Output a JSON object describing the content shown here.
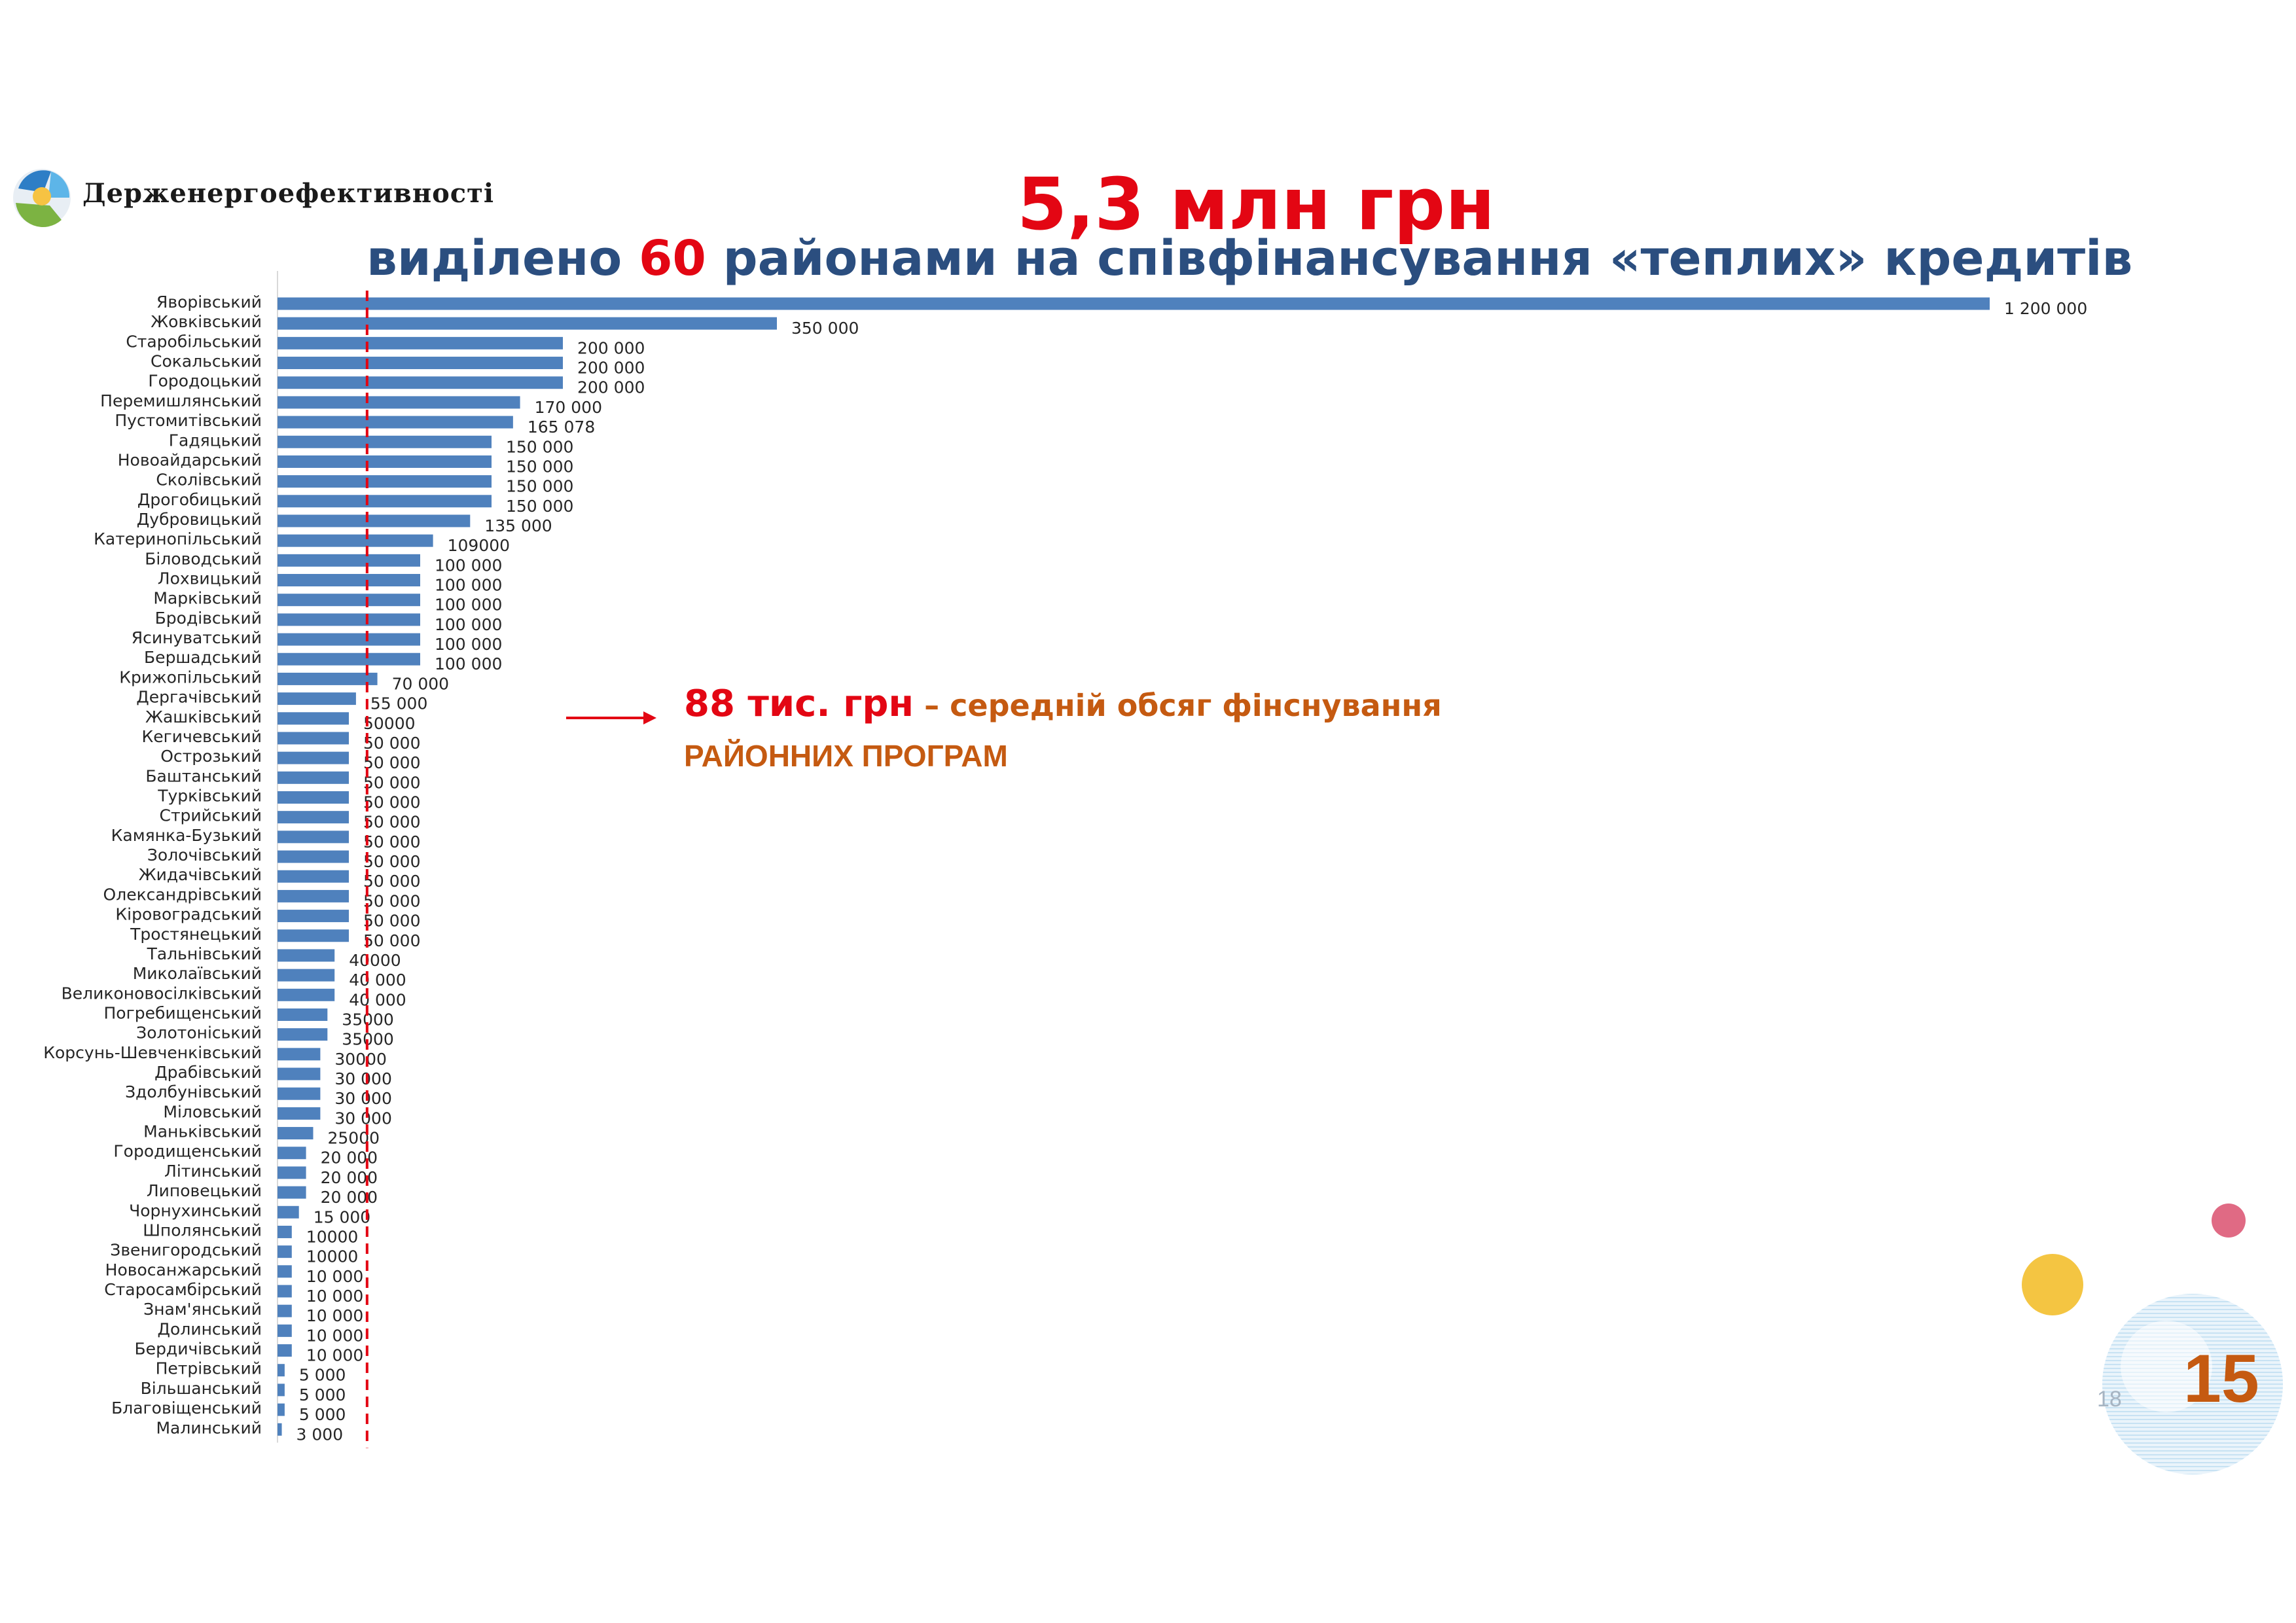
{
  "header": {
    "logo_text": "Держенергоефективності",
    "title": "5,3 млн грн",
    "subtitle_before": "виділено ",
    "subtitle_number": "60",
    "subtitle_after": " районами на співфінансування «теплих» кредитів"
  },
  "note": {
    "amount": "88 тис. грн",
    "text": " – середній обсяг фінснування",
    "line2": "РАЙОННИХ ПРОГРАМ"
  },
  "page": {
    "number": "15",
    "small_number": "18"
  },
  "colors": {
    "bar": "#4f81bd",
    "title_red": "#e30613",
    "subtitle_blue": "#2b4e7f",
    "note_orange": "#c55a11",
    "average_line": "#e30613"
  },
  "chart_data": {
    "type": "bar",
    "orientation": "horizontal",
    "average_line_value": 88000,
    "categories": [
      "Яворівський",
      "Жовківський",
      "Старобільський",
      "Сокальський",
      "Городоцький",
      "Перемишлянський",
      "Пустомитівський",
      "Гадяцький",
      "Новоайдарський",
      "Сколівський",
      "Дрогобицький",
      "Дубровицький",
      "Катеринопільський",
      "Біловодський",
      "Лохвицький",
      "Марківський",
      "Бродівський",
      "Ясинуватський",
      "Бершадський",
      "Крижопільський",
      "Дергачівський",
      "Жашківський",
      "Кегичевський",
      "Острозький",
      "Баштанський",
      "Турківський",
      "Стрийський",
      "Камянка-Бузький",
      "Золочівський",
      "Жидачівський",
      "Олександрівський",
      "Кіровоградський",
      "Тростянецький",
      "Тальнівський",
      "Миколаївський",
      "Великоновосілківський",
      "Погребищенський",
      "Золотоніський",
      "Корсунь-Шевченківський",
      "Драбівський",
      "Здолбунівський",
      "Міловський",
      "Маньківський",
      "Городищенський",
      "Літинський",
      "Липовецький",
      "Чорнухинський",
      "Шполянський",
      "Звенигородський",
      "Новосанжарський",
      "Старосамбірський",
      "Знам'янський",
      "Долинський",
      "Бердичівський",
      "Петрівський",
      "Вільшанський",
      "Благовіщенський",
      "Малинський"
    ],
    "values": [
      1200000,
      350000,
      200000,
      200000,
      200000,
      170000,
      165078,
      150000,
      150000,
      150000,
      150000,
      135000,
      109000,
      100000,
      100000,
      100000,
      100000,
      100000,
      100000,
      70000,
      55000,
      50000,
      50000,
      50000,
      50000,
      50000,
      50000,
      50000,
      50000,
      50000,
      50000,
      50000,
      50000,
      40000,
      40000,
      40000,
      35000,
      35000,
      30000,
      30000,
      30000,
      30000,
      25000,
      20000,
      20000,
      20000,
      15000,
      10000,
      10000,
      10000,
      10000,
      10000,
      10000,
      10000,
      5000,
      5000,
      5000,
      3000
    ],
    "value_labels": [
      "1 200 000",
      "350 000",
      "200 000",
      "200 000",
      "200 000",
      "170 000",
      "165 078",
      "150 000",
      "150 000",
      "150 000",
      "150 000",
      "135 000",
      "109000",
      "100 000",
      "100 000",
      "100 000",
      "100 000",
      "100 000",
      "100 000",
      "70 000",
      "55 000",
      "50000",
      "50 000",
      "50 000",
      "50 000",
      "50 000",
      "50 000",
      "50 000",
      "50 000",
      "50 000",
      "50 000",
      "50 000",
      "50 000",
      "40000",
      "40 000",
      "40 000",
      "35000",
      "35000",
      "30000",
      "30 000",
      "30 000",
      "30 000",
      "25000",
      "20 000",
      "20 000",
      "20 000",
      "15 000",
      "10000",
      "10000",
      "10 000",
      "10 000",
      "10 000",
      "10 000",
      "10 000",
      "5 000",
      "5 000",
      "5 000",
      "3 000"
    ]
  }
}
